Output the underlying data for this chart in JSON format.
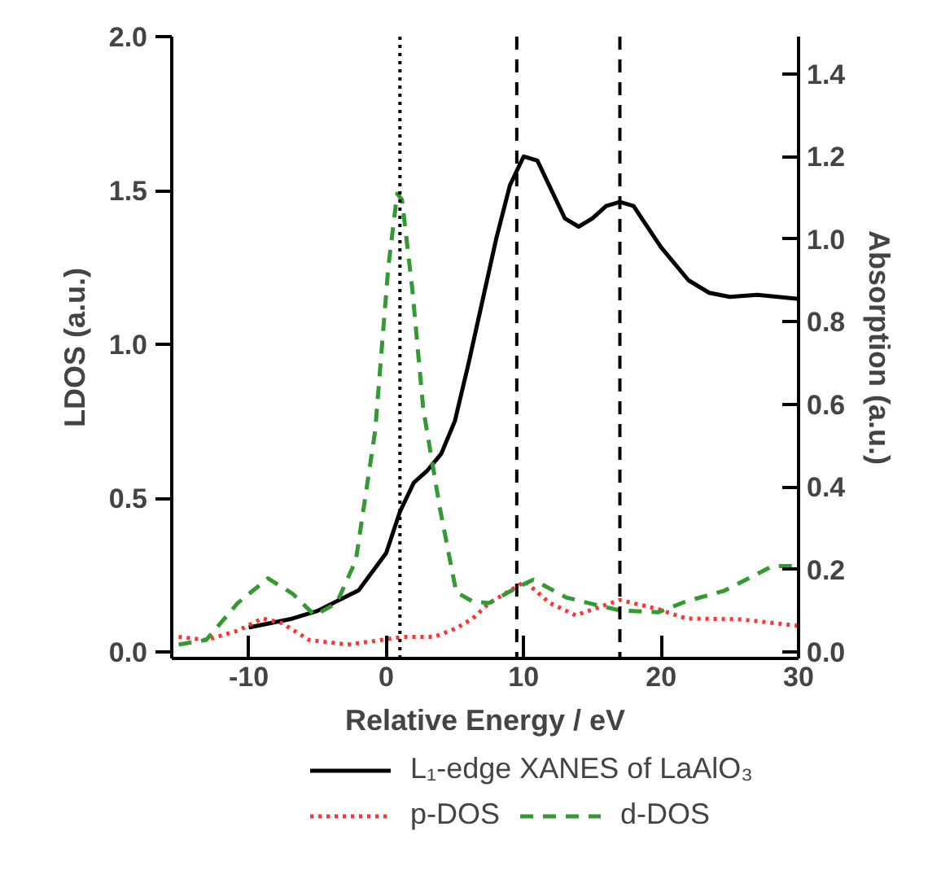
{
  "chart_data": {
    "type": "line",
    "xlabel": "Relative Energy / eV",
    "ylabel": "LDOS (a.u.)",
    "y2label": "Absorption (a.u.)",
    "xlim": [
      -15.6,
      30
    ],
    "xticks": [
      -10,
      0,
      10,
      20,
      30
    ],
    "ylim": [
      -0.02,
      2.0
    ],
    "yticks": [
      {
        "value": 0,
        "label": "0.0"
      },
      {
        "value": 0.5,
        "label": "0.5"
      },
      {
        "value": 1,
        "label": "1.0"
      },
      {
        "value": 1.5,
        "label": "1.5"
      },
      {
        "value": 2,
        "label": "2.0"
      }
    ],
    "y2lim": [
      -0.015,
      1.49
    ],
    "y2ticks": [
      {
        "value": 0,
        "label": "0.0"
      },
      {
        "value": 0.2,
        "label": "0.2"
      },
      {
        "value": 0.4,
        "label": "0.4"
      },
      {
        "value": 0.6,
        "label": "0.6"
      },
      {
        "value": 0.8,
        "label": "0.8"
      },
      {
        "value": 1,
        "label": "1.0"
      },
      {
        "value": 1.2,
        "label": "1.2"
      },
      {
        "value": 1.4,
        "label": "1.4"
      }
    ],
    "grid": false,
    "legend": "bottom",
    "marker": "none",
    "series": [
      {
        "name": "L₁-edge XANES of LaAlO₃",
        "color": "#000000",
        "line_style": "solid",
        "axis": "y2",
        "x": [
          -10,
          -7,
          -5,
          -2,
          0,
          1,
          2,
          3,
          4,
          5,
          6,
          7,
          8,
          9,
          10,
          11,
          12,
          13,
          14,
          15,
          16,
          17,
          18,
          19,
          20,
          22,
          23.5,
          25,
          27,
          30
        ],
        "values": [
          0.06,
          0.08,
          0.1,
          0.15,
          0.24,
          0.34,
          0.41,
          0.44,
          0.48,
          0.56,
          0.7,
          0.85,
          1.0,
          1.13,
          1.2,
          1.19,
          1.12,
          1.05,
          1.03,
          1.05,
          1.08,
          1.09,
          1.08,
          1.03,
          0.98,
          0.9,
          0.87,
          0.86,
          0.865,
          0.855
        ]
      },
      {
        "name": "p-DOS",
        "color": "#ff3333",
        "line_style": "dotted",
        "x": [
          -15.1,
          -13.1,
          -10.8,
          -9,
          -7.6,
          -5.6,
          -2.8,
          -0.8,
          1.2,
          3.5,
          5.1,
          6.3,
          7.5,
          10.1,
          11.9,
          13.8,
          17,
          19.8,
          21.8,
          25.8,
          30
        ],
        "values": [
          0.05,
          0.04,
          0.07,
          0.11,
          0.095,
          0.04,
          0.025,
          0.037,
          0.05,
          0.05,
          0.078,
          0.11,
          0.16,
          0.23,
          0.16,
          0.12,
          0.17,
          0.14,
          0.11,
          0.107,
          0.086
        ]
      },
      {
        "name": "d-DOS",
        "color": "#339933",
        "line_style": "dashed",
        "x": [
          -15.1,
          -13.1,
          -10.8,
          -8.6,
          -6.8,
          -5.2,
          -3.6,
          -2.2,
          -0.8,
          0.15,
          0.8,
          1.15,
          1.9,
          2.7,
          3.9,
          5.1,
          6.3,
          7.5,
          9.5,
          10.7,
          13.1,
          15,
          17,
          19.8,
          21.8,
          24.6,
          28.1,
          30
        ],
        "values": [
          0.025,
          0.04,
          0.16,
          0.24,
          0.19,
          0.12,
          0.16,
          0.3,
          0.72,
          1.25,
          1.49,
          1.47,
          1.18,
          0.79,
          0.47,
          0.195,
          0.165,
          0.16,
          0.21,
          0.236,
          0.178,
          0.157,
          0.136,
          0.13,
          0.165,
          0.2,
          0.28,
          0.28
        ]
      }
    ],
    "ref_lines": [
      {
        "axis": "x",
        "value": 1,
        "line_style": "dotted",
        "color": "#000000"
      },
      {
        "axis": "x",
        "value": 9.5,
        "line_style": "dashed",
        "color": "#000000"
      },
      {
        "axis": "x",
        "value": 17,
        "line_style": "dashed",
        "color": "#000000"
      }
    ]
  }
}
